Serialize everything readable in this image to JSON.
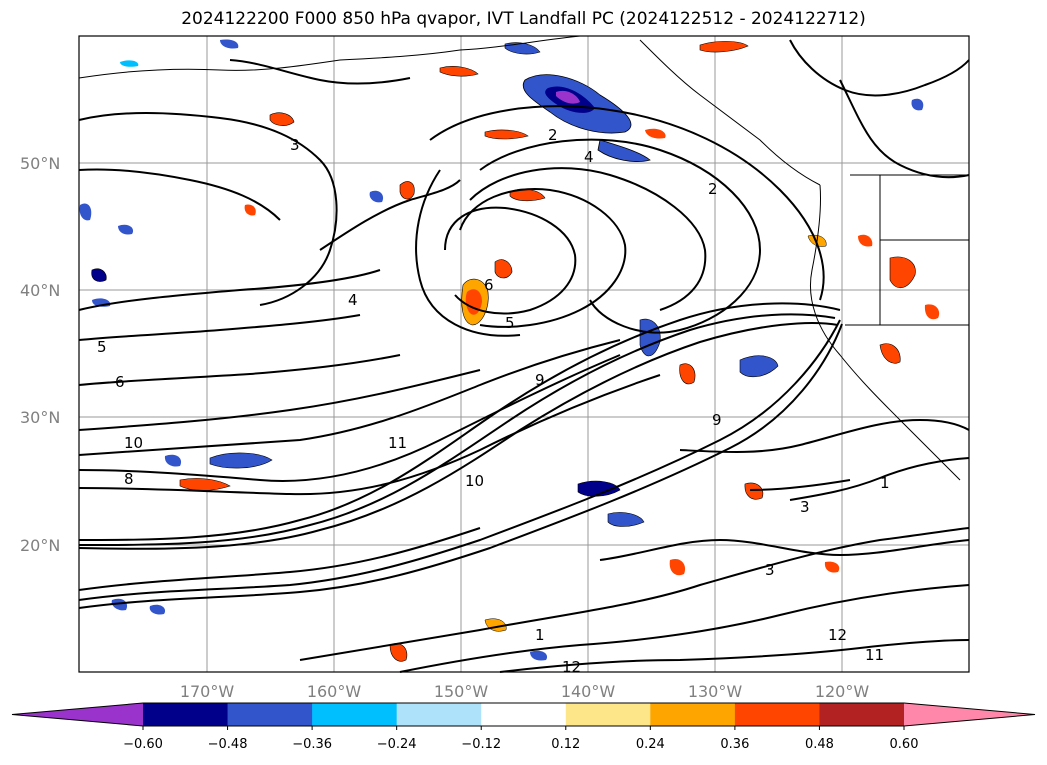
{
  "title": "2024122200 F000 850 hPa qvapor, IVT Landfall PC (2024122512 - 2024122712)",
  "map": {
    "lat_labels": [
      "50°N",
      "40°N",
      "30°N",
      "20°N"
    ],
    "lon_labels": [
      "170°W",
      "160°W",
      "150°W",
      "140°W",
      "130°W",
      "120°W"
    ],
    "contour_labels": [
      "2",
      "3",
      "4",
      "5",
      "6",
      "9",
      "10",
      "11",
      "12",
      "1",
      "3",
      "4",
      "5",
      "6",
      "3",
      "2",
      "1",
      "10",
      "11",
      "12",
      "9",
      "8"
    ]
  },
  "colorbar": {
    "tick_labels": [
      "−0.60",
      "−0.48",
      "−0.36",
      "−0.24",
      "−0.12",
      "0.12",
      "0.24",
      "0.36",
      "0.48",
      "0.60"
    ],
    "colors": [
      "#9933cc",
      "#00008b",
      "#3355cc",
      "#00bfff",
      "#aee2fa",
      "#ffffff",
      "#fde68a",
      "#ffa500",
      "#ff4500",
      "#b22222",
      "#ff88aa"
    ]
  }
}
